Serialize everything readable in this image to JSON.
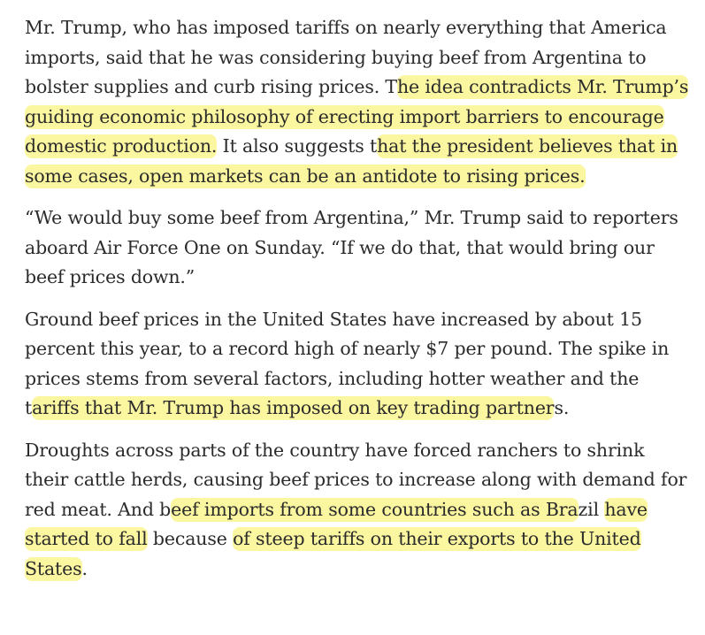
{
  "article": {
    "paragraphs": [
      {
        "segments": [
          {
            "text": "Mr. Trump, who has imposed tariffs on nearly everything that America imports, said that he was considering buying beef from Argentina to bolster supplies and curb rising prices. T",
            "highlight": false
          },
          {
            "text": "he idea contradicts Mr. Trump’s guiding economic philosophy of erecting import barriers to encourage domestic production.",
            "highlight": true
          },
          {
            "text": " It also suggests t",
            "highlight": false
          },
          {
            "text": "hat the president believes that in some cases, open markets can be an antidote to rising prices.",
            "highlight": true
          }
        ]
      },
      {
        "segments": [
          {
            "text": "“We would buy some beef from Argentina,” Mr. Trump said to reporters aboard Air Force One on Sunday. “If we do that, that would bring our beef prices down.”",
            "highlight": false
          }
        ]
      },
      {
        "segments": [
          {
            "text": "Ground beef prices in the United States have increased by about 15 percent this year, to a record high of nearly $7 per pound. The spike in prices stems from several factors, including hotter weather and the t",
            "highlight": false
          },
          {
            "text": "ariffs that Mr. Trump has imposed on key trading partner",
            "highlight": true
          },
          {
            "text": "s.",
            "highlight": false
          }
        ]
      },
      {
        "segments": [
          {
            "text": "Droughts across parts of the country have forced ranchers to shrink their cattle herds, causing beef prices to increase along with demand for red meat. And b",
            "highlight": false
          },
          {
            "text": "eef imports from some countries such as Bra",
            "highlight": true
          },
          {
            "text": "zil ",
            "highlight": false
          },
          {
            "text": "have started to fall",
            "highlight": true
          },
          {
            "text": " because ",
            "highlight": false
          },
          {
            "text": "of steep tariffs on their exports to the United States",
            "highlight": true
          },
          {
            "text": ".",
            "highlight": false
          }
        ]
      }
    ]
  },
  "colors": {
    "text": "#2b2b2b",
    "highlight": "#fbf6a0",
    "background": "#ffffff"
  }
}
